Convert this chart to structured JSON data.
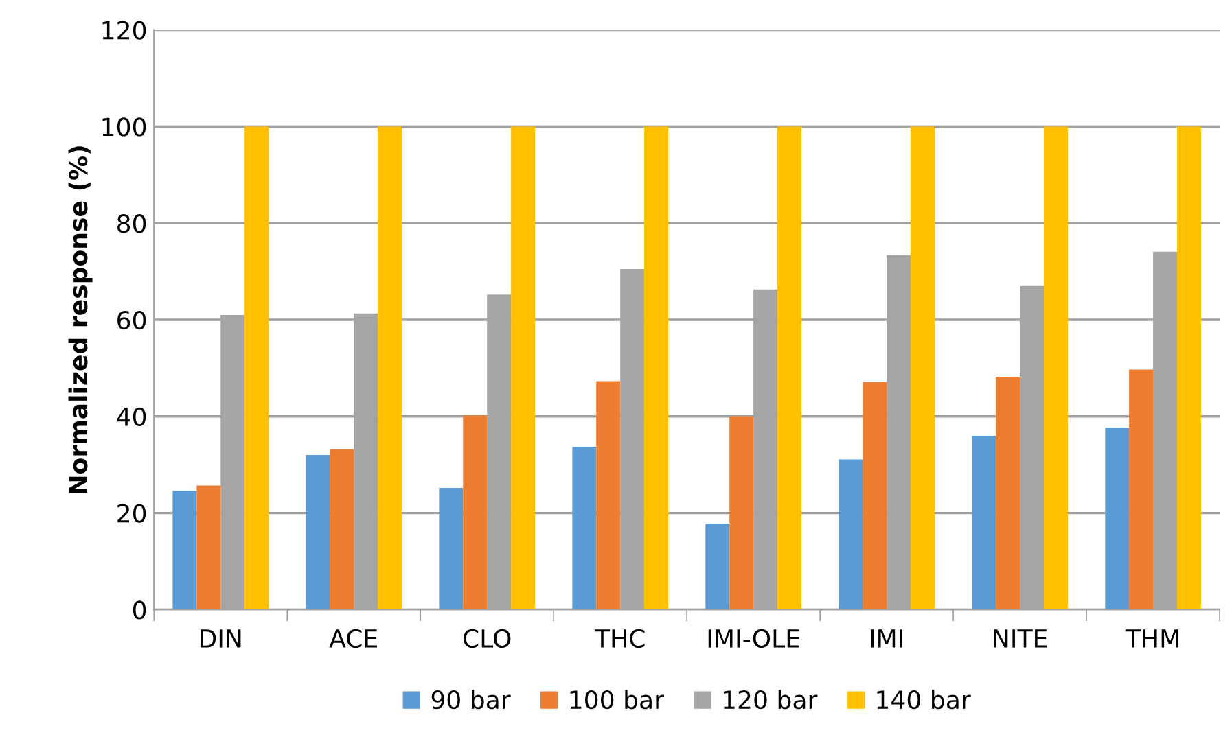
{
  "chart_data": {
    "type": "bar",
    "ylabel": "Normalized response (%)",
    "categories": [
      "DIN",
      "ACE",
      "CLO",
      "THC",
      "IMI-OLE",
      "IMI",
      "NITE",
      "THM"
    ],
    "series": [
      {
        "name": "90 bar",
        "color": "#5b9bd5",
        "values": [
          24.6,
          32.0,
          25.2,
          33.7,
          17.8,
          31.1,
          36.0,
          37.7
        ]
      },
      {
        "name": "100 bar",
        "color": "#ed7d31",
        "values": [
          25.7,
          33.2,
          40.2,
          47.3,
          40.0,
          47.1,
          48.2,
          49.7
        ]
      },
      {
        "name": "120 bar",
        "color": "#a5a5a5",
        "values": [
          61.0,
          61.3,
          65.2,
          70.5,
          66.3,
          73.4,
          67.0,
          74.1
        ]
      },
      {
        "name": "140 bar",
        "color": "#ffc000",
        "values": [
          100,
          100,
          100,
          100,
          100,
          100,
          100,
          100
        ]
      }
    ],
    "ylim": [
      0,
      120
    ],
    "yticks": [
      0,
      20,
      40,
      60,
      80,
      100,
      120
    ],
    "grid": "y",
    "legend": "bottom"
  }
}
